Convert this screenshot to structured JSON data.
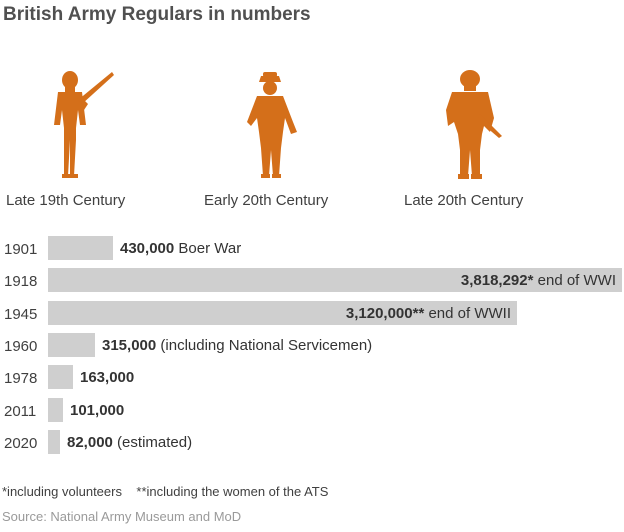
{
  "title": "British Army Regulars in numbers",
  "colors": {
    "figure": "#d46f1a",
    "bar": "#cfcfcf"
  },
  "eras": [
    {
      "label": "Late 19th Century",
      "icon": "victorian-soldier-icon"
    },
    {
      "label": "Early 20th Century",
      "icon": "ww1-soldier-icon"
    },
    {
      "label": "Late 20th Century",
      "icon": "modern-soldier-icon"
    }
  ],
  "chart_data": {
    "type": "bar",
    "orientation": "horizontal",
    "categories": [
      "1901",
      "1918",
      "1945",
      "1960",
      "1978",
      "2011",
      "2020"
    ],
    "values": [
      430000,
      3818292,
      3120000,
      315000,
      163000,
      101000,
      82000
    ],
    "value_labels": [
      "430,000",
      "3,818,292*",
      "3,120,000**",
      "315,000",
      "163,000",
      "101,000",
      "82,000"
    ],
    "annotations": [
      "Boer War",
      "end of WWI",
      "end of WWII",
      "(including National Servicemen)",
      "",
      "",
      "(estimated)"
    ]
  },
  "notes": "*including volunteers    **including the women of the ATS",
  "source": "Source: National Army Museum and MoD"
}
